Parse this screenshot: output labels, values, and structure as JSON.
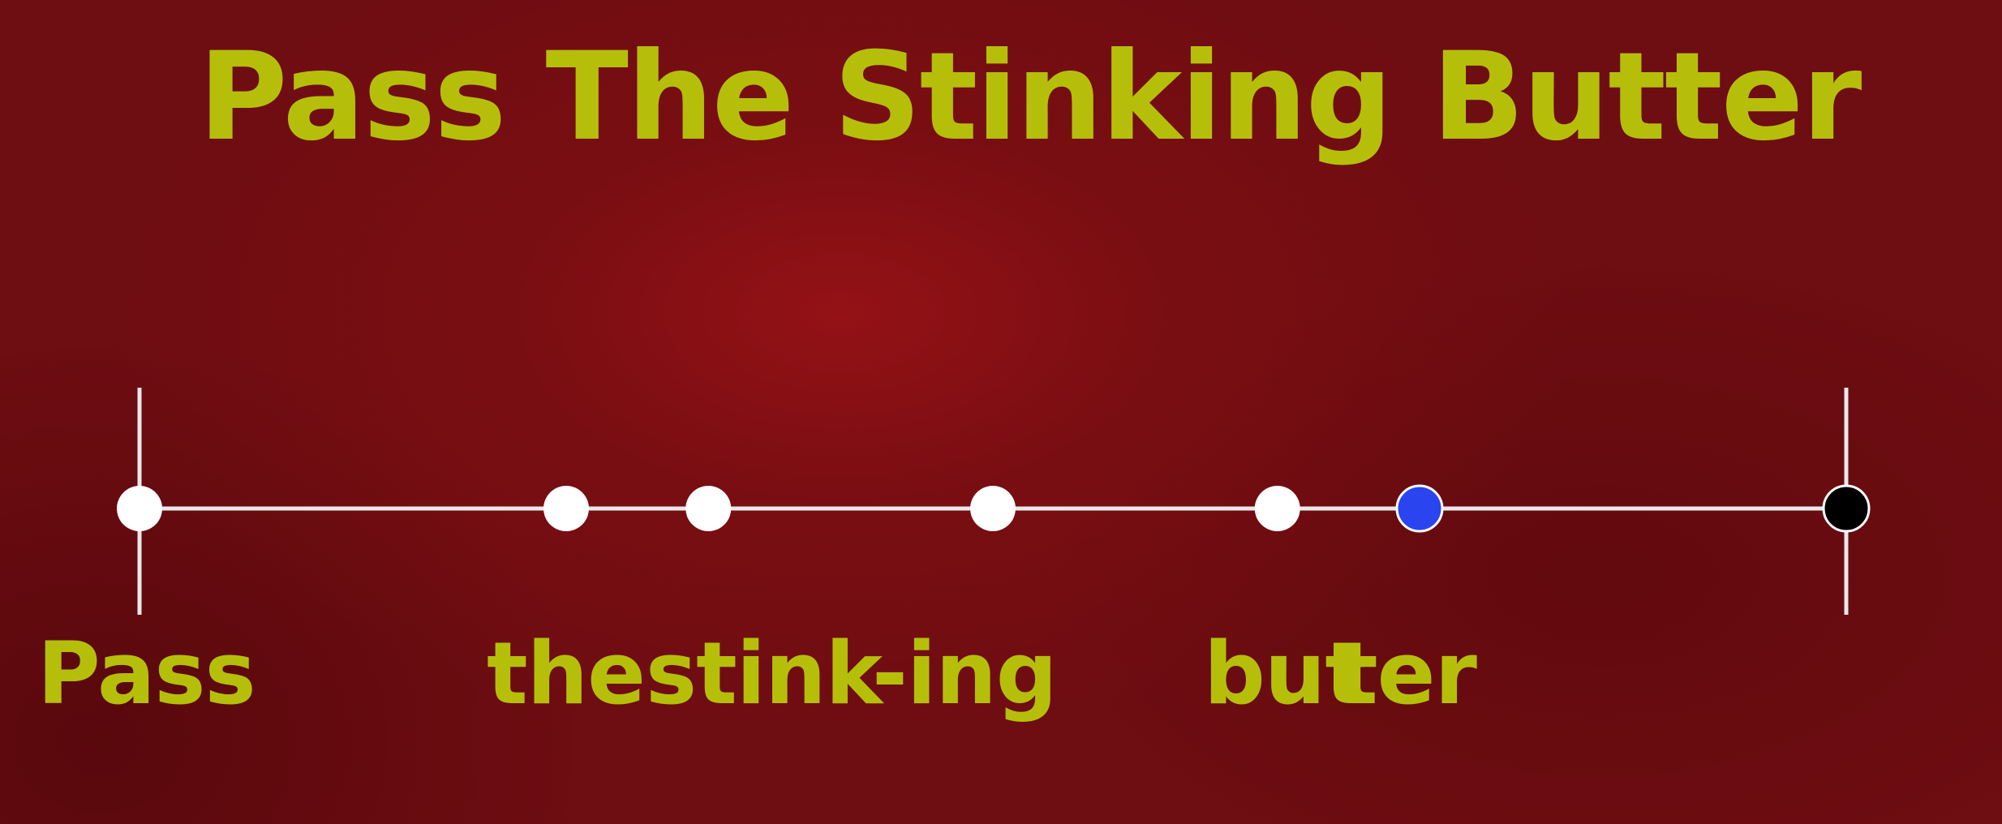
{
  "title": "Pass The Stinking Butter",
  "colors": {
    "text": "#b5bf0a",
    "line": "#e8e8e8",
    "beat": "#ffffff",
    "current_beat": "#2a44f0",
    "end_beat": "#000000"
  },
  "timeline": {
    "beats": [
      {
        "pos": 0.0,
        "kind": "beat"
      },
      {
        "pos": 0.25,
        "kind": "beat"
      },
      {
        "pos": 0.3333,
        "kind": "beat"
      },
      {
        "pos": 0.5,
        "kind": "beat"
      },
      {
        "pos": 0.6667,
        "kind": "beat"
      },
      {
        "pos": 0.75,
        "kind": "current"
      },
      {
        "pos": 1.0,
        "kind": "end"
      }
    ],
    "barlines": [
      0.0,
      1.0
    ]
  },
  "lyrics": [
    {
      "text": "Pass"
    },
    {
      "text": "the"
    },
    {
      "text": "stink"
    },
    {
      "text": "-ing"
    },
    {
      "text": "but"
    },
    {
      "text": "ter"
    }
  ]
}
